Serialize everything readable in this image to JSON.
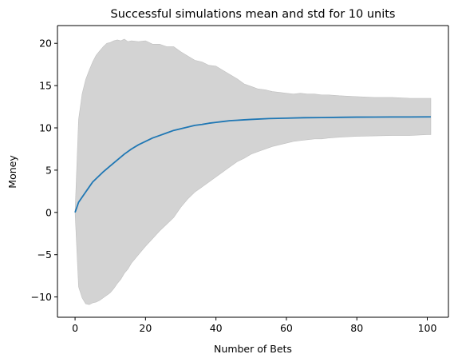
{
  "chart_data": {
    "type": "line",
    "title": "Successful simulations mean and std for 10 units",
    "xlabel": "Number of Bets",
    "ylabel": "Money",
    "xlim": [
      -5,
      106
    ],
    "ylim": [
      -12.4,
      22.1
    ],
    "xticks": [
      0,
      20,
      40,
      60,
      80,
      100
    ],
    "yticks": [
      -10,
      -5,
      0,
      5,
      10,
      15,
      20
    ],
    "tick_labels": {
      "x": [
        "0",
        "20",
        "40",
        "60",
        "80",
        "100"
      ],
      "y": [
        "−10",
        "−5",
        "0",
        "5",
        "10",
        "15",
        "20"
      ]
    },
    "grid": false,
    "mean_color": "#1f77b4",
    "band_color": "#d3d3d3",
    "series": [
      {
        "kind": "line",
        "x": [
          0,
          1,
          2,
          3,
          4,
          5,
          6,
          8,
          10,
          12,
          14,
          16,
          18,
          20,
          22,
          24,
          26,
          28,
          30,
          32,
          34,
          36,
          38,
          40,
          42,
          44,
          46,
          48,
          50,
          55,
          60,
          65,
          70,
          75,
          80,
          85,
          90,
          95,
          100,
          101
        ],
        "y": [
          0,
          1.2,
          1.8,
          2.4,
          3.0,
          3.6,
          4.0,
          4.8,
          5.5,
          6.2,
          6.9,
          7.5,
          8.0,
          8.4,
          8.8,
          9.1,
          9.4,
          9.7,
          9.9,
          10.1,
          10.3,
          10.4,
          10.55,
          10.65,
          10.75,
          10.85,
          10.9,
          10.95,
          11.0,
          11.1,
          11.15,
          11.2,
          11.22,
          11.25,
          11.27,
          11.28,
          11.29,
          11.29,
          11.3,
          11.3
        ]
      },
      {
        "kind": "band",
        "x": [
          0,
          1,
          2,
          3,
          4,
          5,
          6,
          7,
          8,
          9,
          10,
          11,
          12,
          13,
          14,
          15,
          16,
          18,
          20,
          22,
          24,
          26,
          28,
          30,
          32,
          34,
          36,
          38,
          40,
          42,
          44,
          46,
          48,
          50,
          52,
          54,
          56,
          58,
          60,
          62,
          64,
          66,
          68,
          70,
          72,
          75,
          80,
          85,
          90,
          95,
          100,
          101
        ],
        "upper": [
          0,
          11.0,
          14.0,
          15.7,
          16.8,
          17.8,
          18.6,
          19.1,
          19.6,
          20.0,
          20.1,
          20.3,
          20.4,
          20.3,
          20.5,
          20.2,
          20.3,
          20.2,
          20.3,
          19.9,
          19.9,
          19.6,
          19.6,
          19.0,
          18.5,
          18.0,
          17.8,
          17.4,
          17.3,
          16.8,
          16.3,
          15.8,
          15.2,
          14.9,
          14.6,
          14.5,
          14.3,
          14.2,
          14.1,
          14.0,
          14.1,
          14.0,
          14.0,
          13.9,
          13.9,
          13.8,
          13.7,
          13.6,
          13.6,
          13.5,
          13.5,
          13.5
        ],
        "lower": [
          0,
          -8.8,
          -10.1,
          -10.8,
          -10.9,
          -10.7,
          -10.6,
          -10.4,
          -10.1,
          -9.8,
          -9.5,
          -9.0,
          -8.4,
          -7.9,
          -7.2,
          -6.7,
          -6.0,
          -5.0,
          -4.0,
          -3.1,
          -2.2,
          -1.4,
          -0.6,
          0.6,
          1.6,
          2.4,
          3.0,
          3.6,
          4.2,
          4.8,
          5.4,
          6.0,
          6.4,
          6.9,
          7.2,
          7.5,
          7.8,
          8.0,
          8.2,
          8.4,
          8.5,
          8.6,
          8.7,
          8.7,
          8.8,
          8.9,
          9.0,
          9.05,
          9.1,
          9.1,
          9.2,
          9.2
        ]
      }
    ]
  }
}
